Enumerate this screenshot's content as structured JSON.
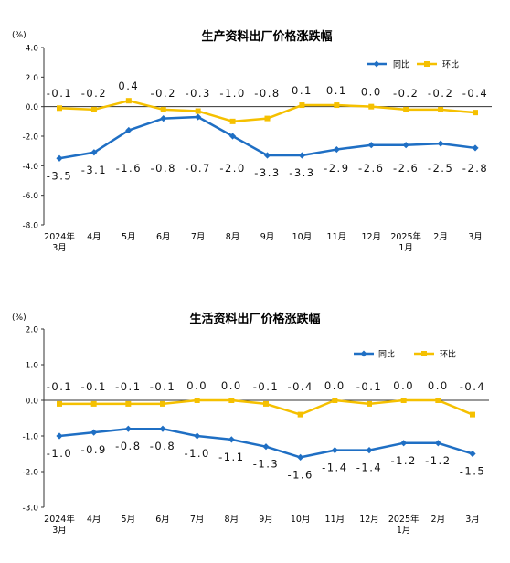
{
  "chart_data": [
    {
      "type": "line",
      "title": "生产资料出厂价格涨跌幅",
      "unit": "(%)",
      "categories": [
        [
          "2024年",
          "3月"
        ],
        [
          "4月"
        ],
        [
          "5月"
        ],
        [
          "6月"
        ],
        [
          "7月"
        ],
        [
          "8月"
        ],
        [
          "9月"
        ],
        [
          "10月"
        ],
        [
          "11月"
        ],
        [
          "12月"
        ],
        [
          "2025年",
          "1月"
        ],
        [
          "2月"
        ],
        [
          "3月"
        ]
      ],
      "ylim": [
        -8.0,
        4.0
      ],
      "yticks": [
        "4.0",
        "2.0",
        "0.0",
        "-2.0",
        "-4.0",
        "-6.0",
        "-8.0"
      ],
      "grid": false,
      "legend_position": "top-right",
      "series": [
        {
          "name": "同比",
          "color": "#1f6fc4",
          "marker": "diamond",
          "values": [
            -3.5,
            -3.1,
            -1.6,
            -0.8,
            -0.7,
            -2.0,
            -3.3,
            -3.3,
            -2.9,
            -2.6,
            -2.6,
            -2.5,
            -2.8
          ],
          "labels": [
            "-3.5",
            "-3.1",
            "-1.6",
            "-0.8",
            "-0.7",
            "-2.0",
            "-3.3",
            "-3.3",
            "-2.9",
            "-2.6",
            "-2.6",
            "-2.5",
            "-2.8"
          ]
        },
        {
          "name": "环比",
          "color": "#f5c000",
          "marker": "square",
          "values": [
            -0.1,
            -0.2,
            0.4,
            -0.2,
            -0.3,
            -1.0,
            -0.8,
            0.1,
            0.1,
            0.0,
            -0.2,
            -0.2,
            -0.4
          ],
          "labels": [
            "-0.1",
            "-0.2",
            "0.4",
            "-0.2",
            "-0.3",
            "-1.0",
            "-0.8",
            "0.1",
            "0.1",
            "0.0",
            "-0.2",
            "-0.2",
            "-0.4"
          ]
        }
      ]
    },
    {
      "type": "line",
      "title": "生活资料出厂价格涨跌幅",
      "unit": "(%)",
      "categories": [
        [
          "2024年",
          "3月"
        ],
        [
          "4月"
        ],
        [
          "5月"
        ],
        [
          "6月"
        ],
        [
          "7月"
        ],
        [
          "8月"
        ],
        [
          "9月"
        ],
        [
          "10月"
        ],
        [
          "11月"
        ],
        [
          "12月"
        ],
        [
          "2025年",
          "1月"
        ],
        [
          "2月"
        ],
        [
          "3月"
        ]
      ],
      "ylim": [
        -3.0,
        2.0
      ],
      "yticks": [
        "2.0",
        "1.0",
        "0.0",
        "-1.0",
        "-2.0",
        "-3.0"
      ],
      "grid": false,
      "legend_position": "top-right",
      "series": [
        {
          "name": "同比",
          "color": "#1f6fc4",
          "marker": "diamond",
          "values": [
            -1.0,
            -0.9,
            -0.8,
            -0.8,
            -1.0,
            -1.1,
            -1.3,
            -1.6,
            -1.4,
            -1.4,
            -1.2,
            -1.2,
            -1.5
          ],
          "labels": [
            "-1.0",
            "-0.9",
            "-0.8",
            "-0.8",
            "-1.0",
            "-1.1",
            "-1.3",
            "-1.6",
            "-1.4",
            "-1.4",
            "-1.2",
            "-1.2",
            "-1.5"
          ]
        },
        {
          "name": "环比",
          "color": "#f5c000",
          "marker": "square",
          "values": [
            -0.1,
            -0.1,
            -0.1,
            -0.1,
            0.0,
            0.0,
            -0.1,
            -0.4,
            0.0,
            -0.1,
            0.0,
            0.0,
            -0.4
          ],
          "labels": [
            "-0.1",
            "-0.1",
            "-0.1",
            "-0.1",
            "0.0",
            "0.0",
            "-0.1",
            "-0.4",
            "0.0",
            "-0.1",
            "0.0",
            "0.0",
            "-0.4"
          ]
        }
      ]
    }
  ]
}
